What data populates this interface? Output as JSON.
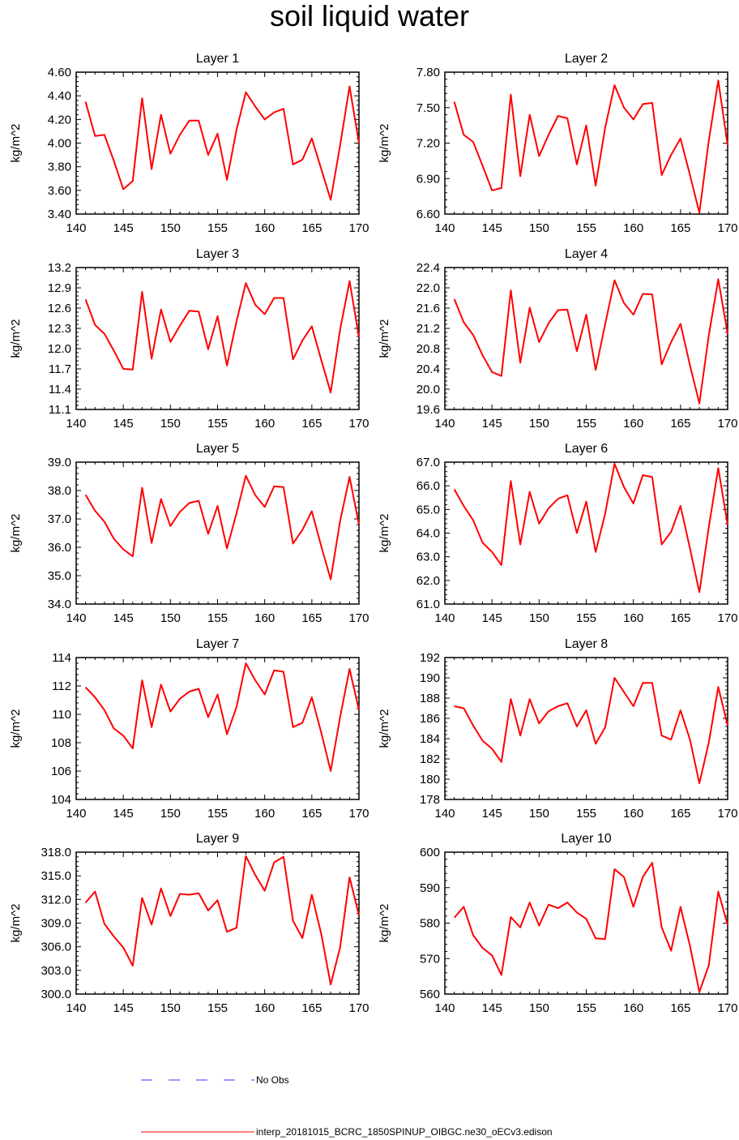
{
  "title": "soil liquid water",
  "legend": [
    {
      "label": "No Obs",
      "color": "#3333ff",
      "style": "dashed"
    },
    {
      "label": "interp_20181015_BCRC_1850SPINUP_OIBGC.ne30_oECv3.edison",
      "color": "#ff0000",
      "style": "solid"
    }
  ],
  "chart_data": [
    {
      "type": "line",
      "title": "Layer 1",
      "ylabel": "kg/m^2",
      "xlim": [
        140,
        170
      ],
      "ylim": [
        3.4,
        4.6
      ],
      "xticks": [
        140,
        145,
        150,
        155,
        160,
        165,
        170
      ],
      "yticks": [
        "3.40",
        "3.60",
        "3.80",
        "4.00",
        "4.20",
        "4.40",
        "4.60"
      ],
      "series": [
        {
          "color": "#ff0000",
          "x": [
            141,
            142,
            143,
            144,
            145,
            146,
            147,
            148,
            149,
            150,
            151,
            152,
            153,
            154,
            155,
            156,
            157,
            158,
            159,
            160,
            161,
            162,
            163,
            164,
            165,
            166,
            167,
            168,
            169,
            170
          ],
          "values": [
            4.35,
            4.06,
            4.07,
            3.85,
            3.61,
            3.68,
            4.38,
            3.78,
            4.24,
            3.91,
            4.07,
            4.19,
            4.19,
            3.9,
            4.08,
            3.69,
            4.11,
            4.43,
            4.31,
            4.2,
            4.26,
            4.29,
            3.82,
            3.86,
            4.04,
            3.78,
            3.52,
            3.98,
            4.48,
            4.0
          ]
        }
      ]
    },
    {
      "type": "line",
      "title": "Layer 2",
      "ylabel": "kg/m^2",
      "xlim": [
        140,
        170
      ],
      "ylim": [
        6.6,
        7.8
      ],
      "xticks": [
        140,
        145,
        150,
        155,
        160,
        165,
        170
      ],
      "yticks": [
        "6.60",
        "6.90",
        "7.20",
        "7.50",
        "7.80"
      ],
      "series": [
        {
          "color": "#ff0000",
          "x": [
            141,
            142,
            143,
            144,
            145,
            146,
            147,
            148,
            149,
            150,
            151,
            152,
            153,
            154,
            155,
            156,
            157,
            158,
            159,
            160,
            161,
            162,
            163,
            164,
            165,
            166,
            167,
            168,
            169,
            170
          ],
          "values": [
            7.55,
            7.27,
            7.21,
            7.01,
            6.8,
            6.82,
            7.61,
            6.92,
            7.44,
            7.09,
            7.27,
            7.43,
            7.41,
            7.02,
            7.35,
            6.84,
            7.33,
            7.69,
            7.5,
            7.4,
            7.53,
            7.54,
            6.93,
            7.1,
            7.24,
            6.93,
            6.61,
            7.22,
            7.73,
            7.18
          ]
        }
      ]
    },
    {
      "type": "line",
      "title": "Layer 3",
      "ylabel": "kg/m^2",
      "xlim": [
        140,
        170
      ],
      "ylim": [
        11.1,
        13.2
      ],
      "xticks": [
        140,
        145,
        150,
        155,
        160,
        165,
        170
      ],
      "yticks": [
        "11.1",
        "11.4",
        "11.7",
        "12.0",
        "12.3",
        "12.6",
        "12.9",
        "13.2"
      ],
      "series": [
        {
          "color": "#ff0000",
          "x": [
            141,
            142,
            143,
            144,
            145,
            146,
            147,
            148,
            149,
            150,
            151,
            152,
            153,
            154,
            155,
            156,
            157,
            158,
            159,
            160,
            161,
            162,
            163,
            164,
            165,
            166,
            167,
            168,
            169,
            170
          ],
          "values": [
            12.73,
            12.35,
            12.22,
            11.97,
            11.7,
            11.69,
            12.84,
            11.85,
            12.58,
            12.1,
            12.34,
            12.56,
            12.55,
            11.99,
            12.48,
            11.75,
            12.4,
            12.97,
            12.65,
            12.51,
            12.75,
            12.75,
            11.84,
            12.12,
            12.33,
            11.83,
            11.35,
            12.28,
            13.0,
            12.17
          ]
        }
      ]
    },
    {
      "type": "line",
      "title": "Layer 4",
      "ylabel": "kg/m^2",
      "xlim": [
        140,
        170
      ],
      "ylim": [
        19.6,
        22.4
      ],
      "xticks": [
        140,
        145,
        150,
        155,
        160,
        165,
        170
      ],
      "yticks": [
        "19.6",
        "20.0",
        "20.4",
        "20.8",
        "21.2",
        "21.6",
        "22.0",
        "22.4"
      ],
      "series": [
        {
          "color": "#ff0000",
          "x": [
            141,
            142,
            143,
            144,
            145,
            146,
            147,
            148,
            149,
            150,
            151,
            152,
            153,
            154,
            155,
            156,
            157,
            158,
            159,
            160,
            161,
            162,
            163,
            164,
            165,
            166,
            167,
            168,
            169,
            170
          ],
          "values": [
            21.78,
            21.32,
            21.07,
            20.67,
            20.34,
            20.26,
            21.95,
            20.52,
            21.61,
            20.93,
            21.3,
            21.56,
            21.57,
            20.75,
            21.47,
            20.38,
            21.28,
            22.15,
            21.7,
            21.47,
            21.88,
            21.87,
            20.49,
            20.93,
            21.29,
            20.47,
            19.72,
            21.06,
            22.17,
            21.09
          ]
        }
      ]
    },
    {
      "type": "line",
      "title": "Layer 5",
      "ylabel": "kg/m^2",
      "xlim": [
        140,
        170
      ],
      "ylim": [
        34.0,
        39.0
      ],
      "xticks": [
        140,
        145,
        150,
        155,
        160,
        165,
        170
      ],
      "yticks": [
        "34.0",
        "35.0",
        "36.0",
        "37.0",
        "38.0",
        "39.0"
      ],
      "series": [
        {
          "color": "#ff0000",
          "x": [
            141,
            142,
            143,
            144,
            145,
            146,
            147,
            148,
            149,
            150,
            151,
            152,
            153,
            154,
            155,
            156,
            157,
            158,
            159,
            160,
            161,
            162,
            163,
            164,
            165,
            166,
            167,
            168,
            169,
            170
          ],
          "values": [
            37.85,
            37.29,
            36.9,
            36.3,
            35.93,
            35.68,
            38.1,
            36.15,
            37.7,
            36.75,
            37.25,
            37.56,
            37.64,
            36.47,
            37.46,
            35.96,
            37.19,
            38.52,
            37.84,
            37.42,
            38.15,
            38.12,
            36.13,
            36.61,
            37.27,
            36.03,
            34.87,
            36.92,
            38.48,
            36.8
          ]
        }
      ]
    },
    {
      "type": "line",
      "title": "Layer 6",
      "ylabel": "kg/m^2",
      "xlim": [
        140,
        170
      ],
      "ylim": [
        61.0,
        67.0
      ],
      "xticks": [
        140,
        145,
        150,
        155,
        160,
        165,
        170
      ],
      "yticks": [
        "61.0",
        "62.0",
        "63.0",
        "64.0",
        "65.0",
        "66.0",
        "67.0"
      ],
      "series": [
        {
          "color": "#ff0000",
          "x": [
            141,
            142,
            143,
            144,
            145,
            146,
            147,
            148,
            149,
            150,
            151,
            152,
            153,
            154,
            155,
            156,
            157,
            158,
            159,
            160,
            161,
            162,
            163,
            164,
            165,
            166,
            167,
            168,
            169,
            170
          ],
          "values": [
            65.85,
            65.15,
            64.55,
            63.6,
            63.2,
            62.65,
            66.2,
            63.52,
            65.75,
            64.4,
            65.05,
            65.45,
            65.6,
            64.0,
            65.33,
            63.2,
            64.82,
            66.93,
            65.95,
            65.25,
            66.45,
            66.37,
            63.52,
            64.05,
            65.15,
            63.35,
            61.5,
            64.25,
            66.75,
            64.35
          ]
        }
      ]
    },
    {
      "type": "line",
      "title": "Layer 7",
      "ylabel": "kg/m^2",
      "xlim": [
        140,
        170
      ],
      "ylim": [
        104,
        114
      ],
      "xticks": [
        140,
        145,
        150,
        155,
        160,
        165,
        170
      ],
      "yticks": [
        "104",
        "106",
        "108",
        "110",
        "112",
        "114"
      ],
      "series": [
        {
          "color": "#ff0000",
          "x": [
            141,
            142,
            143,
            144,
            145,
            146,
            147,
            148,
            149,
            150,
            151,
            152,
            153,
            154,
            155,
            156,
            157,
            158,
            159,
            160,
            161,
            162,
            163,
            164,
            165,
            166,
            167,
            168,
            169,
            170
          ],
          "values": [
            111.9,
            111.2,
            110.3,
            109.0,
            108.5,
            107.6,
            112.4,
            109.1,
            112.1,
            110.2,
            111.1,
            111.6,
            111.8,
            109.8,
            111.4,
            108.6,
            110.5,
            113.6,
            112.4,
            111.4,
            113.1,
            113.0,
            109.1,
            109.4,
            111.2,
            108.7,
            106.0,
            109.8,
            113.2,
            110.3
          ]
        }
      ]
    },
    {
      "type": "line",
      "title": "Layer 8",
      "ylabel": "kg/m^2",
      "xlim": [
        140,
        170
      ],
      "ylim": [
        178,
        192
      ],
      "xticks": [
        140,
        145,
        150,
        155,
        160,
        165,
        170
      ],
      "yticks": [
        "178",
        "180",
        "182",
        "184",
        "186",
        "188",
        "190",
        "192"
      ],
      "series": [
        {
          "color": "#ff0000",
          "x": [
            141,
            142,
            143,
            144,
            145,
            146,
            147,
            148,
            149,
            150,
            151,
            152,
            153,
            154,
            155,
            156,
            157,
            158,
            159,
            160,
            161,
            162,
            163,
            164,
            165,
            166,
            167,
            168,
            169,
            170
          ],
          "values": [
            187.2,
            187.0,
            185.3,
            183.8,
            183.0,
            181.7,
            187.9,
            184.3,
            187.9,
            185.5,
            186.7,
            187.2,
            187.5,
            185.2,
            186.8,
            183.5,
            185.1,
            190.0,
            188.6,
            187.2,
            189.5,
            189.5,
            184.3,
            183.9,
            186.8,
            183.9,
            179.6,
            183.6,
            189.1,
            185.3
          ]
        }
      ]
    },
    {
      "type": "line",
      "title": "Layer 9",
      "ylabel": "kg/m^2",
      "xlim": [
        140,
        170
      ],
      "ylim": [
        300,
        318
      ],
      "xticks": [
        140,
        145,
        150,
        155,
        160,
        165,
        170
      ],
      "yticks": [
        "300.0",
        "303.0",
        "306.0",
        "309.0",
        "312.0",
        "315.0",
        "318.0"
      ],
      "series": [
        {
          "color": "#ff0000",
          "x": [
            141,
            142,
            143,
            144,
            145,
            146,
            147,
            148,
            149,
            150,
            151,
            152,
            153,
            154,
            155,
            156,
            157,
            158,
            159,
            160,
            161,
            162,
            163,
            164,
            165,
            166,
            167,
            168,
            169,
            170
          ],
          "values": [
            311.6,
            313.0,
            308.9,
            307.3,
            305.9,
            303.6,
            312.2,
            308.8,
            313.4,
            309.9,
            312.7,
            312.6,
            312.8,
            310.6,
            311.9,
            307.9,
            308.4,
            317.5,
            315.1,
            313.1,
            316.7,
            317.4,
            309.3,
            307.1,
            312.6,
            307.6,
            301.2,
            305.9,
            314.8,
            310.0
          ]
        }
      ]
    },
    {
      "type": "line",
      "title": "Layer 10",
      "ylabel": "kg/m^2",
      "xlim": [
        140,
        170
      ],
      "ylim": [
        560,
        600
      ],
      "xticks": [
        140,
        145,
        150,
        155,
        160,
        165,
        170
      ],
      "yticks": [
        "560",
        "570",
        "580",
        "590",
        "600"
      ],
      "series": [
        {
          "color": "#ff0000",
          "x": [
            141,
            142,
            143,
            144,
            145,
            146,
            147,
            148,
            149,
            150,
            151,
            152,
            153,
            154,
            155,
            156,
            157,
            158,
            159,
            160,
            161,
            162,
            163,
            164,
            165,
            166,
            167,
            168,
            169,
            170
          ],
          "values": [
            581.5,
            584.6,
            576.6,
            573.0,
            570.9,
            565.4,
            581.7,
            578.8,
            585.8,
            579.3,
            585.2,
            584.2,
            585.8,
            583.0,
            581.2,
            575.7,
            575.5,
            595.2,
            593.0,
            584.6,
            593.0,
            597.0,
            578.8,
            572.2,
            584.6,
            573.6,
            560.6,
            568.1,
            588.9,
            579.5
          ]
        }
      ]
    }
  ]
}
